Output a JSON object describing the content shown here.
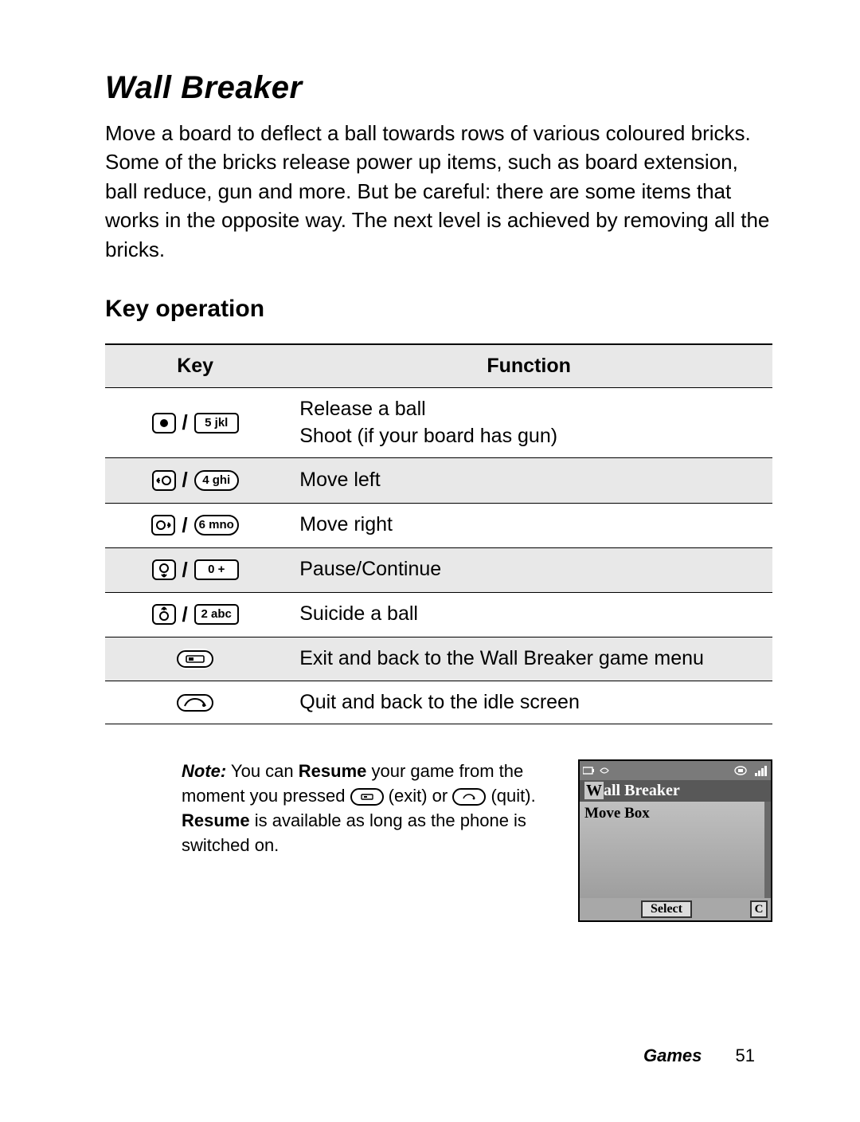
{
  "title": "Wall Breaker",
  "description": "Move a board to deflect a ball towards rows of various coloured bricks. Some of the bricks release power up items, such as board extension, ball reduce, gun and more. But be careful: there are some items that works in the opposite way. The next level is achieved by removing all the bricks.",
  "subhead": "Key operation",
  "table": {
    "head_key": "Key",
    "head_function": "Function",
    "rows": [
      {
        "key1": "center",
        "key2": "5 jkl",
        "key2_shape": "box",
        "func": "Release a ball\nShoot (if your board has gun)"
      },
      {
        "key1": "left",
        "key2": "4 ghi",
        "key2_shape": "oval",
        "func": "Move left"
      },
      {
        "key1": "right",
        "key2": "6 mno",
        "key2_shape": "oval",
        "func": "Move right"
      },
      {
        "key1": "down",
        "key2": "0 +",
        "key2_shape": "box",
        "func": "Pause/Continue"
      },
      {
        "key1": "up",
        "key2": "2 abc",
        "key2_shape": "box",
        "func": "Suicide a ball"
      },
      {
        "key1": "soft",
        "key2": null,
        "func": "Exit and back to the Wall Breaker game menu"
      },
      {
        "key1": "end",
        "key2": null,
        "func": "Quit and back to the idle screen"
      }
    ]
  },
  "note": {
    "prefix": "Note:",
    "s1a": " You can ",
    "b1": "Resume",
    "s1b": " your game from the moment you pressed ",
    "exit_label": "(exit) or ",
    "quit_label": "(quit). ",
    "b2": "Resume",
    "s2": " is available as long as the phone is switched on."
  },
  "phone": {
    "title_hl": "W",
    "title_rest": "all Breaker",
    "row": "Move Box",
    "soft_left": "Select",
    "soft_right": "C"
  },
  "footer": {
    "section": "Games",
    "page": "51"
  },
  "colors": {
    "header_bg": "#e8e8e8",
    "row_alt_bg": "#e8e8e8",
    "border": "#000000"
  }
}
